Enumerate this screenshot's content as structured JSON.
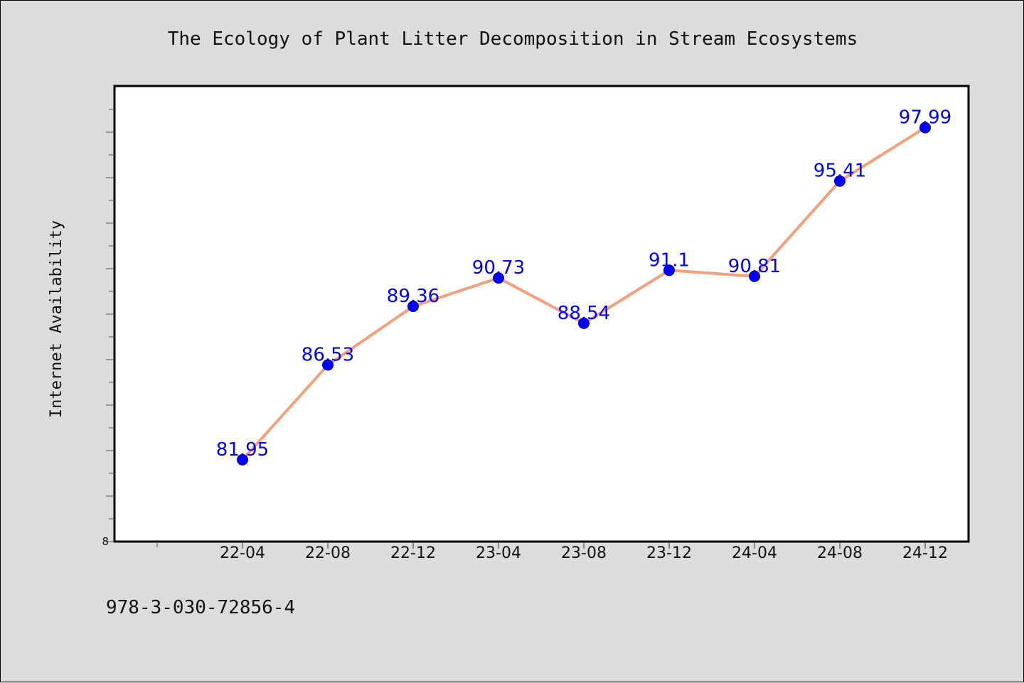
{
  "page": {
    "background": "#dcdcdc",
    "isbn": "978-3-030-72856-4"
  },
  "chart_data": {
    "type": "line",
    "title": "The Ecology of Plant Litter Decomposition in Stream Ecosystems",
    "xlabel": "",
    "ylabel": "Internet Availability",
    "categories": [
      "22-04",
      "22-08",
      "22-12",
      "23-04",
      "23-08",
      "23-12",
      "24-04",
      "24-08",
      "24-12"
    ],
    "series": [
      {
        "values": [
          81.95,
          86.53,
          89.36,
          90.73,
          88.54,
          91.1,
          90.81,
          95.41,
          97.99
        ],
        "line_color": "#f4a07c",
        "marker_color": "#0000ff"
      }
    ],
    "data_labels": [
      "81.95",
      "86.53",
      "89.36",
      "90.73",
      "88.54",
      "91.1",
      "90.81",
      "95.41",
      "97.99"
    ],
    "ylim": [
      78,
      100
    ],
    "y_tick_labels": [
      "8"
    ],
    "grid": false,
    "legend": "none"
  }
}
